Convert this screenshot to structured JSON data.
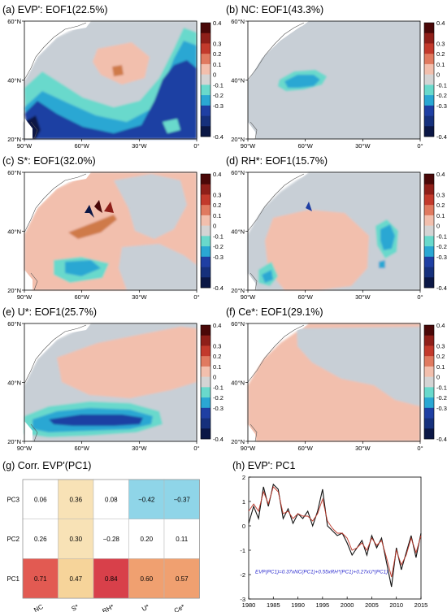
{
  "colors": {
    "ocean_base": "#c8cfd6",
    "neg_light": "#69d9cc",
    "neg_mid": "#2aa7d3",
    "neg_dark": "#1f3fa3",
    "pos_light": "#f2bfad",
    "pos_mid": "#cf7a4a",
    "pos_dark": "#8e1f19",
    "line_black": "#111111",
    "line_red": "#c0392b",
    "note": "#2c2ccf"
  },
  "colorbar": {
    "ticks": [
      "0.4",
      "0.3",
      "0.2",
      "0.1",
      "0",
      "-0.1",
      "-0.2",
      "-0.3",
      "-0.4"
    ],
    "colors": [
      "#4a0808",
      "#8e1f19",
      "#c23a2c",
      "#e07a60",
      "#f2bfad",
      "#d4d4d4",
      "#69d9cc",
      "#2aa7d3",
      "#1f3fa3",
      "#16307c",
      "#0b1745"
    ]
  },
  "map_axes": {
    "lat_ticks": [
      "60°N",
      "40°N",
      "20°N"
    ],
    "lon_ticks": [
      "90°W",
      "60°W",
      "30°W",
      "0°"
    ]
  },
  "panels": [
    {
      "title": "(a) EVP': EOF1(22.5%)"
    },
    {
      "title": "(b) NC: EOF1(43.3%)"
    },
    {
      "title": "(c) S*: EOF1(32.0%)"
    },
    {
      "title": "(d) RH*: EOF1(15.7%)"
    },
    {
      "title": "(e) U*: EOF1(25.7%)"
    },
    {
      "title": "(f) Ce*: EOF1(29.1%)"
    },
    {
      "title": "(g) Corr. EVP'(PC1)"
    },
    {
      "title": "(h) EVP': PC1"
    }
  ],
  "chart_data": [
    {
      "type": "heatmap",
      "title": "(g) Corr. EVP'(PC1)",
      "rows": [
        "PC3",
        "PC2",
        "PC1"
      ],
      "columns": [
        "NC",
        "S*",
        "RH*",
        "U*",
        "Ce*"
      ],
      "values": [
        [
          0.06,
          0.36,
          0.08,
          -0.42,
          -0.37
        ],
        [
          0.26,
          0.3,
          -0.28,
          0.2,
          0.11
        ],
        [
          0.71,
          0.47,
          0.84,
          0.6,
          0.57
        ]
      ],
      "labels": [
        [
          "0.06",
          "0.36",
          "0.08",
          "−0.42",
          "−0.37"
        ],
        [
          "0.26",
          "0.30",
          "−0.28",
          "0.20",
          "0.11"
        ],
        [
          "0.71",
          "0.47",
          "0.84",
          "0.60",
          "0.57"
        ]
      ]
    },
    {
      "type": "line",
      "title": "(h) EVP': PC1",
      "xlim": [
        1980,
        2015
      ],
      "ylim": [
        -3,
        2
      ],
      "xticks": [
        "1980",
        "1985",
        "1990",
        "1995",
        "2000",
        "2005",
        "2010",
        "2015"
      ],
      "yticks": [
        "2",
        "1",
        "0",
        "-1",
        "-2",
        "-3"
      ],
      "annotation": "EVP(PC1)=0.37xNC(PC1)+0.55xRH*(PC1)+0.27xU*(PC1)",
      "x": [
        1980,
        1981,
        1982,
        1983,
        1984,
        1985,
        1986,
        1987,
        1988,
        1989,
        1990,
        1991,
        1992,
        1993,
        1994,
        1995,
        1996,
        1997,
        1998,
        1999,
        2000,
        2001,
        2002,
        2003,
        2004,
        2005,
        2006,
        2007,
        2008,
        2009,
        2010,
        2011,
        2012,
        2013,
        2014,
        2015
      ],
      "series": [
        {
          "values": [
            0.1,
            0.8,
            0.3,
            1.6,
            0.8,
            1.7,
            1.5,
            0.3,
            0.7,
            0.1,
            0.5,
            0.3,
            0.6,
            0.0,
            0.6,
            1.5,
            0.0,
            -0.2,
            -0.4,
            -0.3,
            -0.7,
            -1.2,
            -0.9,
            -0.6,
            -1.2,
            -0.4,
            -0.9,
            -0.5,
            -1.5,
            -2.5,
            -0.9,
            -1.8,
            -1.1,
            -0.4,
            -1.3,
            -0.3
          ]
        },
        {
          "values": [
            0.6,
            0.9,
            0.6,
            1.4,
            0.9,
            1.6,
            1.4,
            0.5,
            0.6,
            0.3,
            0.5,
            0.4,
            0.4,
            0.2,
            0.5,
            1.1,
            0.2,
            -0.1,
            -0.3,
            -0.3,
            -0.5,
            -1.0,
            -0.9,
            -0.7,
            -1.0,
            -0.5,
            -0.8,
            -0.6,
            -1.3,
            -2.1,
            -1.0,
            -1.6,
            -1.2,
            -0.5,
            -1.1,
            -0.4
          ]
        }
      ]
    }
  ]
}
